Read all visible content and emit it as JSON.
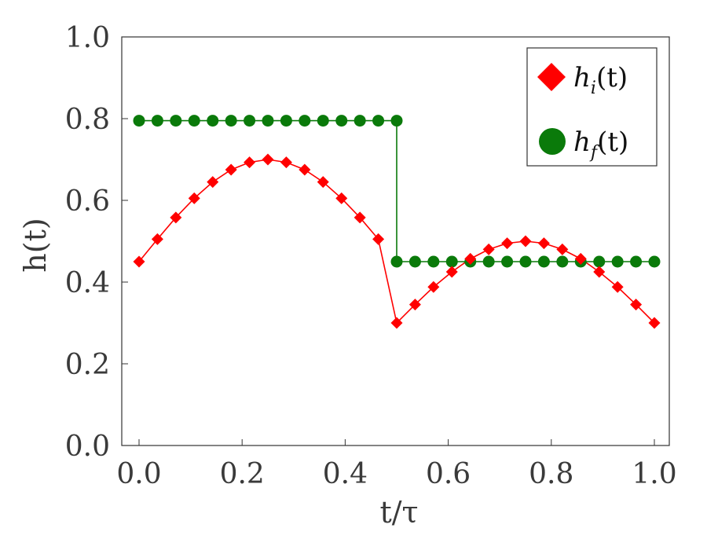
{
  "chart_data": {
    "type": "line",
    "xlabel": "t/τ",
    "ylabel": "h(t)",
    "xlim": [
      0.0,
      1.0
    ],
    "ylim": [
      0.0,
      1.0
    ],
    "x_ticks": [
      "0.0",
      "0.2",
      "0.4",
      "0.6",
      "0.8",
      "1.0"
    ],
    "y_ticks": [
      "0.0",
      "0.2",
      "0.4",
      "0.6",
      "0.8",
      "1.0"
    ],
    "grid": false,
    "legend_position": "top-right",
    "series": [
      {
        "name": "h_i(t)",
        "legend": {
          "base": "h",
          "sub": "i",
          "arg": "(t)"
        },
        "color": "#ff0000",
        "marker": "diamond",
        "x": [
          0.0,
          0.0357,
          0.0714,
          0.1071,
          0.1429,
          0.1786,
          0.2143,
          0.25,
          0.2857,
          0.3214,
          0.3571,
          0.3929,
          0.4286,
          0.4643,
          0.5,
          0.5357,
          0.5714,
          0.6071,
          0.6429,
          0.6786,
          0.7143,
          0.75,
          0.7857,
          0.8214,
          0.8571,
          0.8929,
          0.9286,
          0.9643,
          1.0
        ],
        "values": [
          0.45,
          0.505,
          0.558,
          0.605,
          0.645,
          0.675,
          0.693,
          0.7,
          0.693,
          0.675,
          0.645,
          0.605,
          0.558,
          0.505,
          0.3,
          0.345,
          0.388,
          0.425,
          0.457,
          0.48,
          0.495,
          0.5,
          0.495,
          0.48,
          0.457,
          0.425,
          0.388,
          0.345,
          0.3
        ],
        "segments": [
          [
            0,
            13
          ],
          [
            14,
            28
          ]
        ],
        "jump": {
          "from_index": 13,
          "to_index": 14
        }
      },
      {
        "name": "h_f(t)",
        "legend": {
          "base": "h",
          "sub": "f",
          "arg": "(t)"
        },
        "color": "#0a7a0a",
        "marker": "circle",
        "x": [
          0.0,
          0.0357,
          0.0714,
          0.1071,
          0.1429,
          0.1786,
          0.2143,
          0.25,
          0.2857,
          0.3214,
          0.3571,
          0.3929,
          0.4286,
          0.4643,
          0.5,
          0.5,
          0.5357,
          0.5714,
          0.6071,
          0.6429,
          0.6786,
          0.7143,
          0.75,
          0.7857,
          0.8214,
          0.8571,
          0.8929,
          0.9286,
          0.9643,
          1.0
        ],
        "values": [
          0.795,
          0.795,
          0.795,
          0.795,
          0.795,
          0.795,
          0.795,
          0.795,
          0.795,
          0.795,
          0.795,
          0.795,
          0.795,
          0.795,
          0.795,
          0.45,
          0.45,
          0.45,
          0.45,
          0.45,
          0.45,
          0.45,
          0.45,
          0.45,
          0.45,
          0.45,
          0.45,
          0.45,
          0.45,
          0.45
        ],
        "segments": [
          [
            0,
            14
          ],
          [
            15,
            29
          ]
        ],
        "jump": {
          "from_index": 14,
          "to_index": 15
        }
      }
    ]
  }
}
